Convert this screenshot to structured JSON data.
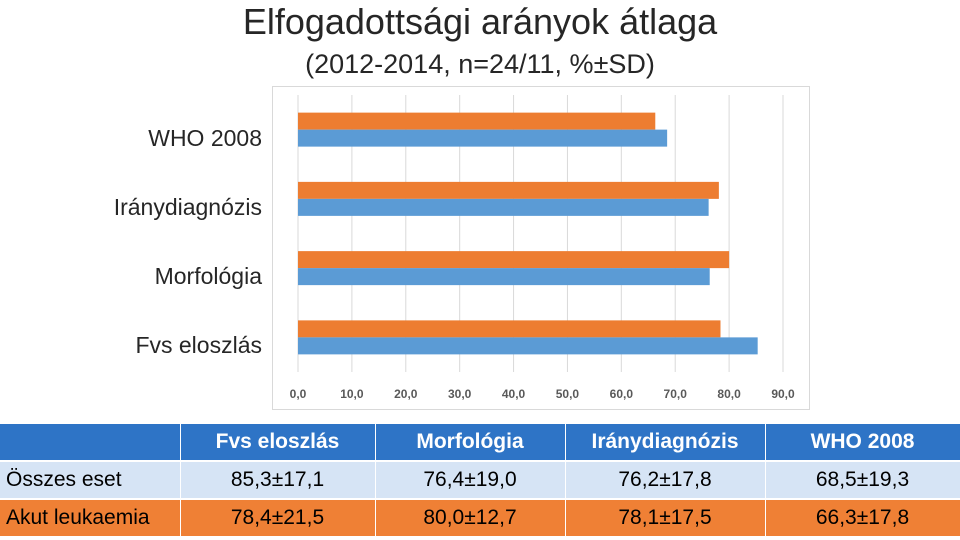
{
  "title": "Elfogadottsági arányok átlaga",
  "subtitle": "(2012-2014, n=24/11, %±SD)",
  "chart_data": {
    "type": "bar",
    "orientation": "horizontal",
    "categories": [
      "Fvs eloszlás",
      "Morfológia",
      "Iránydiagnózis",
      "WHO 2008"
    ],
    "series": [
      {
        "values": [
          85.3,
          76.4,
          76.2,
          68.5
        ],
        "color": "#5b9bd5"
      },
      {
        "values": [
          78.4,
          80.0,
          78.1,
          66.3
        ],
        "color": "#ed7d31"
      }
    ],
    "xlim": [
      0,
      90
    ],
    "xticks": [
      "0,0",
      "10,0",
      "20,0",
      "30,0",
      "40,0",
      "50,0",
      "60,0",
      "70,0",
      "80,0",
      "90,0"
    ],
    "grid": true,
    "legend": "none"
  },
  "table": {
    "headers": [
      "",
      "Fvs eloszlás",
      "Morfológia",
      "Iránydiagnózis",
      "WHO 2008"
    ],
    "rows": [
      {
        "label": "Összes eset",
        "cells": [
          "85,3±17,1",
          "76,4±19,0",
          "76,2±17,8",
          "68,5±19,3"
        ]
      },
      {
        "label": "Akut leukaemia",
        "cells": [
          "78,4±21,5",
          "80,0±12,7",
          "78,1±17,5",
          "66,3±17,8"
        ]
      }
    ]
  },
  "colors": {
    "header_blue": "#2e74c6",
    "row_light": "#d6e4f5",
    "row_orange": "#ef8035"
  }
}
